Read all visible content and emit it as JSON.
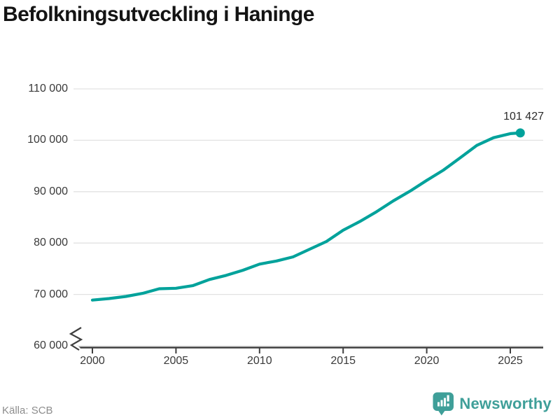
{
  "title": "Befolkningsutveckling i Haninge",
  "source": "Källa: SCB",
  "branding": {
    "name": "Newsworthy",
    "icon": "bar-chart-speech-bubble-icon",
    "color": "#3f9f99"
  },
  "colors": {
    "line": "#00a29b",
    "axis": "#3f3f3f",
    "grid": "#e2e2e2",
    "tick_label": "#3a3a3a",
    "title": "#141414",
    "muted": "#8d8d8d"
  },
  "chart_data": {
    "type": "line",
    "title": "Befolkningsutveckling i Haninge",
    "xlabel": "",
    "ylabel": "",
    "grid": "horizontal",
    "y_axis_break": true,
    "xlim": [
      1998.9,
      2026.9
    ],
    "ylim": [
      60000,
      110000
    ],
    "x": [
      2000,
      2001,
      2002,
      2003,
      2004,
      2005,
      2006,
      2007,
      2008,
      2009,
      2010,
      2011,
      2012,
      2013,
      2014,
      2015,
      2016,
      2017,
      2018,
      2019,
      2020,
      2021,
      2022,
      2023,
      2024,
      2025,
      2025.6
    ],
    "values": [
      68900,
      69200,
      69600,
      70200,
      71100,
      71200,
      71700,
      72900,
      73700,
      74700,
      75900,
      76500,
      77300,
      78800,
      80300,
      82500,
      84200,
      86100,
      88200,
      90100,
      92200,
      94200,
      96600,
      99000,
      100500,
      101300,
      101427
    ],
    "x_ticks": [
      {
        "value": 2000,
        "label": "2000"
      },
      {
        "value": 2005,
        "label": "2005"
      },
      {
        "value": 2010,
        "label": "2010"
      },
      {
        "value": 2015,
        "label": "2015"
      },
      {
        "value": 2020,
        "label": "2020"
      },
      {
        "value": 2025,
        "label": "2025"
      }
    ],
    "y_ticks": [
      {
        "value": 60000,
        "label": "60 000"
      },
      {
        "value": 70000,
        "label": "70 000"
      },
      {
        "value": 80000,
        "label": "80 000"
      },
      {
        "value": 90000,
        "label": "90 000"
      },
      {
        "value": 100000,
        "label": "100 000"
      },
      {
        "value": 110000,
        "label": "110 000"
      }
    ],
    "last_point": {
      "x": 2025.6,
      "value": 101427,
      "label": "101 427"
    }
  }
}
